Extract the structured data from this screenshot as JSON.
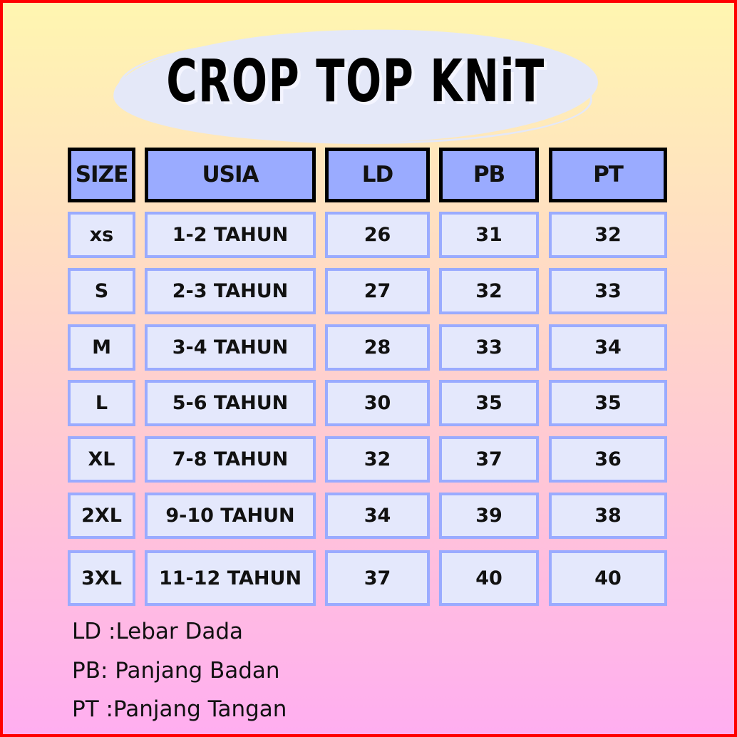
{
  "title": "CROP TOP KNiT",
  "table": {
    "headers": [
      "SIZE",
      "USIA",
      "LD",
      "PB",
      "PT"
    ],
    "rows": [
      [
        "xs",
        "1-2 TAHUN",
        "26",
        "31",
        "32"
      ],
      [
        "S",
        "2-3 TAHUN",
        "27",
        "32",
        "33"
      ],
      [
        "M",
        "3-4 TAHUN",
        "28",
        "33",
        "34"
      ],
      [
        "L",
        "5-6 TAHUN",
        "30",
        "35",
        "35"
      ],
      [
        "XL",
        "7-8 TAHUN",
        "32",
        "37",
        "36"
      ],
      [
        "2XL",
        "9-10 TAHUN",
        "34",
        "39",
        "38"
      ],
      [
        "3XL",
        "11-12 TAHUN",
        "37",
        "40",
        "40"
      ]
    ]
  },
  "legend": [
    "LD :Lebar Dada",
    "PB: Panjang Badan",
    "PT :Panjang Tangan"
  ],
  "colors": {
    "header_fill": "#9aabff",
    "cell_fill": "#e4e8fc",
    "border": "#ff0000"
  }
}
